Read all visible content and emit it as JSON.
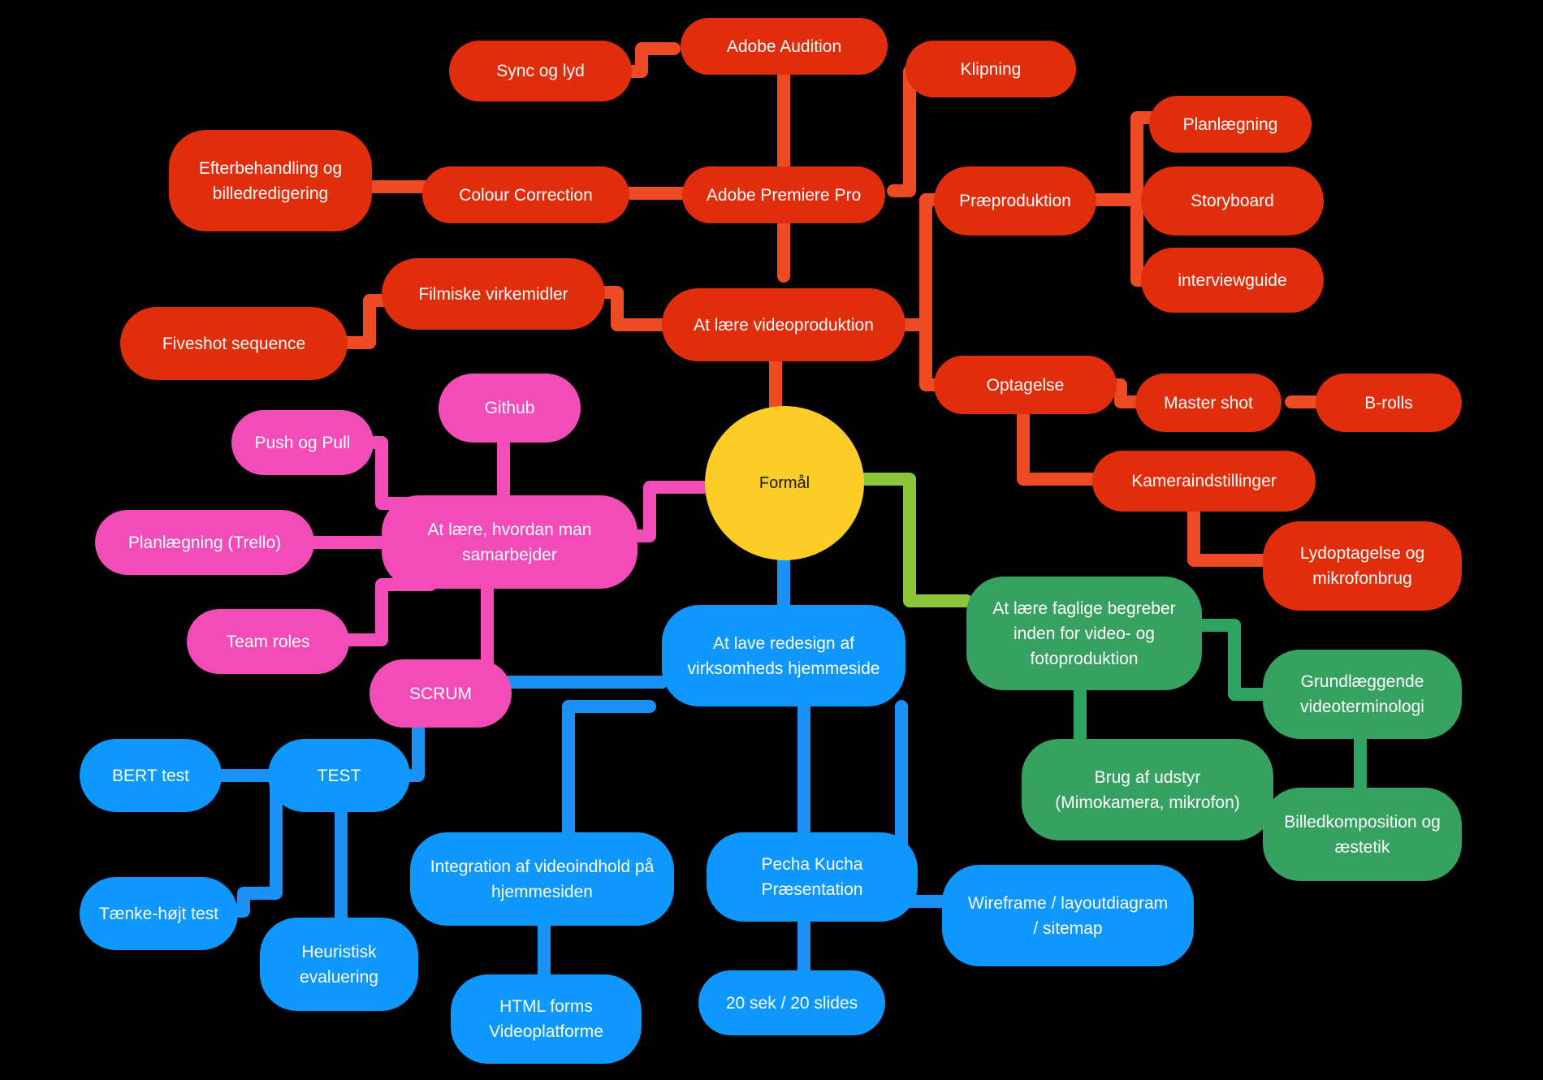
{
  "center": {
    "label": "Formål",
    "color": "#fdcc26"
  },
  "colors": {
    "red": "#e02d0c",
    "pink": "#f24cb8",
    "blue": "#0e97fc",
    "green": "#36a160",
    "yellow": "#fdcc26"
  },
  "red_branch": {
    "root": "At lære videoproduktion",
    "premiere": "Adobe Premiere Pro",
    "audition": "Adobe Audition",
    "sync": "Sync og lyd",
    "klipning": "Klipning",
    "colour": "Colour Correction",
    "efterbehandling": "Efterbehandling og\nbilledredigering",
    "filmiske": "Filmiske virkemidler",
    "fiveshot": "Fiveshot sequence",
    "praeproduktion": "Præproduktion",
    "planlaegning": "Planlægning",
    "storyboard": "Storyboard",
    "interviewguide": "interviewguide",
    "optagelse": "Optagelse",
    "mastershot": "Master shot",
    "brolls": "B-rolls",
    "kamera": "Kameraindstillinger",
    "lydoptagelse": "Lydoptagelse og\nmikrofonbrug"
  },
  "pink_branch": {
    "root": "At lære, hvordan man\nsamarbejder",
    "github": "Github",
    "pushpull": "Push og Pull",
    "trello": "Planlægning (Trello)",
    "teamroles": "Team roles",
    "scrum": "SCRUM"
  },
  "blue_branch": {
    "root": "At lave redesign af\nvirksomheds hjemmeside",
    "test": "TEST",
    "bert": "BERT test",
    "taenke": "Tænke-højt test",
    "heuristisk": "Heuristisk\nevaluering",
    "integration": "Integration af videoindhold på\nhjemmesiden",
    "html": "HTML forms\nVideoplatforme",
    "pecha": "Pecha Kucha\nPræsentation",
    "sek": "20 sek / 20 slides",
    "wireframe": "Wireframe / layoutdiagram\n/ sitemap"
  },
  "green_branch": {
    "root": "At lære faglige begreber\ninden for video- og\nfotoproduktion",
    "grund": "Grundlæggende\nvideoterminologi",
    "udstyr": "Brug af udstyr\n(Mimokamera, mikrofon)",
    "billed": "Billedkomposition og\næstetik"
  }
}
